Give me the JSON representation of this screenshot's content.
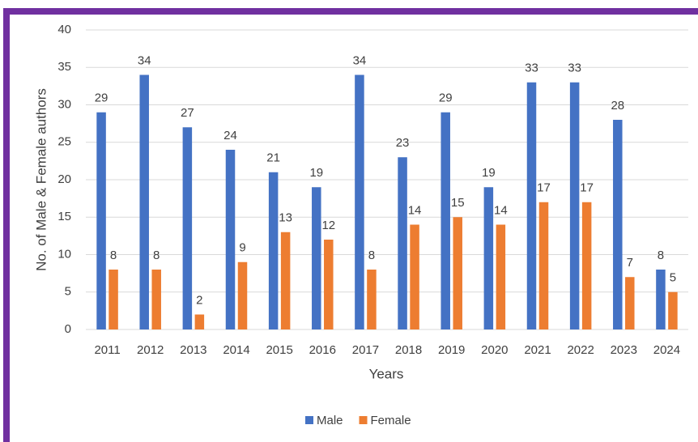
{
  "chart_data": {
    "type": "bar",
    "x_label": "Years",
    "y_label": "No. of Male & Female authors",
    "categories": [
      "2011",
      "2012",
      "2013",
      "2014",
      "2015",
      "2016",
      "2017",
      "2018",
      "2019",
      "2020",
      "2021",
      "2022",
      "2023",
      "2024"
    ],
    "series": [
      {
        "name": "Male",
        "color": "#4472c4",
        "values": [
          29,
          34,
          27,
          24,
          21,
          19,
          34,
          23,
          29,
          19,
          33,
          33,
          28,
          8
        ]
      },
      {
        "name": "Female",
        "color": "#ed7d31",
        "values": [
          8,
          8,
          2,
          9,
          13,
          12,
          8,
          14,
          15,
          14,
          17,
          17,
          7,
          5
        ]
      }
    ],
    "ylim": [
      0,
      40
    ],
    "yticks": [
      0,
      5,
      10,
      15,
      20,
      25,
      30,
      35,
      40
    ],
    "grid": true,
    "legend": "bottom"
  }
}
